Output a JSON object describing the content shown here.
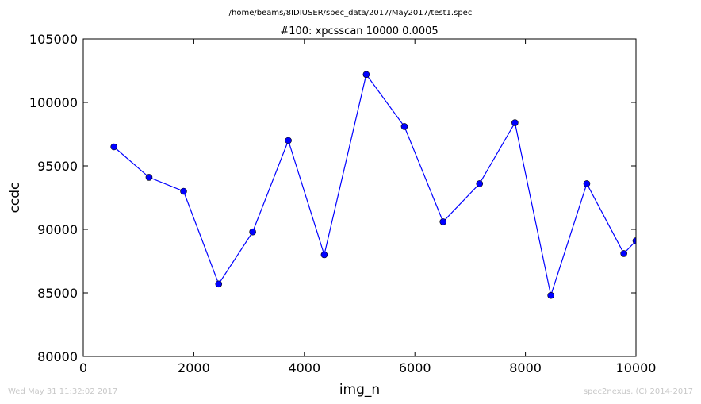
{
  "suptitle": "/home/beams/8IDIUSER/spec_data/2017/May2017/test1.spec",
  "footer": {
    "left": "Wed May 31 11:32:02 2017",
    "right": "spec2nexus, (C) 2014-2017"
  },
  "chart_data": {
    "type": "line",
    "title": "#100: xpcsscan 10000 0.0005",
    "xlabel": "img_n",
    "ylabel": "ccdc",
    "xlim": [
      0,
      10000
    ],
    "ylim": [
      80000,
      105000
    ],
    "xticks": [
      0,
      2000,
      4000,
      6000,
      8000,
      10000
    ],
    "yticks": [
      80000,
      85000,
      90000,
      95000,
      100000,
      105000
    ],
    "grid": false,
    "series": [
      {
        "color": "#0000ff",
        "marker": "circle",
        "x": [
          555,
          1190,
          1815,
          2450,
          3065,
          3710,
          4360,
          5120,
          5810,
          6510,
          7170,
          7810,
          8460,
          9110,
          9780,
          10000
        ],
        "y": [
          96500,
          94100,
          93000,
          85700,
          89800,
          97000,
          88000,
          102200,
          98100,
          90600,
          93600,
          98400,
          84800,
          93600,
          88100,
          89100
        ]
      }
    ]
  }
}
